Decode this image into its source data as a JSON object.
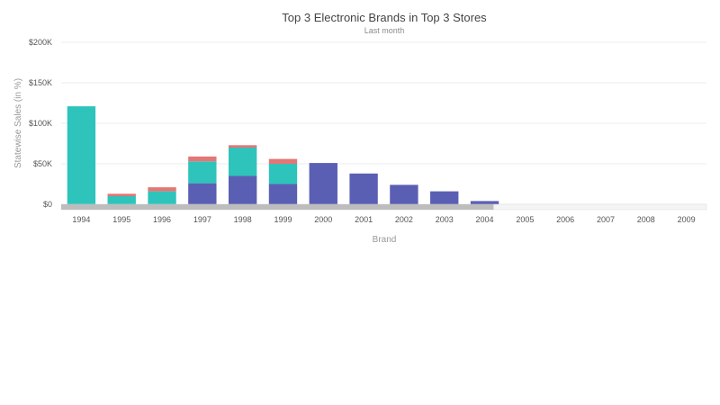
{
  "chart_data": {
    "type": "bar",
    "stacked": true,
    "title": "Top 3 Electronic Brands in Top 3 Stores",
    "subtitle": "Last month",
    "xlabel": "Brand",
    "ylabel": "Statewise Sales (in %)",
    "ylim": [
      0,
      200000
    ],
    "yticks": [
      0,
      50000,
      100000,
      150000,
      200000
    ],
    "ytick_labels": [
      "$0",
      "$50K",
      "$100K",
      "$150K",
      "$200K"
    ],
    "grid": true,
    "categories": [
      "1994",
      "1995",
      "1996",
      "1997",
      "1998",
      "1999",
      "2000",
      "2001",
      "2002",
      "2003",
      "2004",
      "2005",
      "2006",
      "2007",
      "2008",
      "2009"
    ],
    "series": [
      {
        "color": "#5b5fb3",
        "values": [
          0,
          0,
          0,
          26000,
          35000,
          25000,
          51000,
          38000,
          24000,
          16000,
          4000,
          0,
          0,
          0,
          0,
          0
        ]
      },
      {
        "color": "#2ec4bb",
        "values": [
          121000,
          10000,
          16000,
          27000,
          35000,
          25000,
          0,
          0,
          0,
          0,
          0,
          0,
          0,
          0,
          0,
          0
        ]
      },
      {
        "color": "#e47676",
        "values": [
          0,
          3000,
          5000,
          6000,
          3000,
          6000,
          0,
          0,
          0,
          0,
          0,
          0,
          0,
          0,
          0,
          0
        ]
      }
    ],
    "scrollbar_visible_fraction": 0.67
  }
}
